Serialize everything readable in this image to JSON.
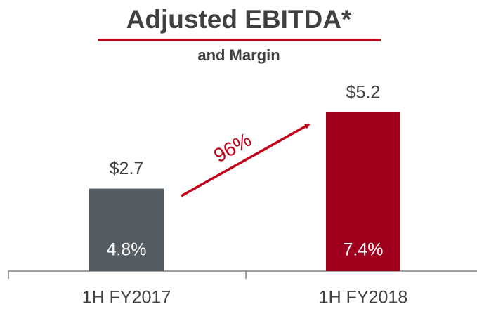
{
  "chart_data": {
    "type": "bar",
    "title": "Adjusted EBITDA*",
    "subtitle": "and Margin",
    "categories": [
      "1H FY2017",
      "1H FY2018"
    ],
    "values": [
      2.7,
      5.2
    ],
    "value_labels": [
      "$2.7",
      "$5.2"
    ],
    "colors": [
      "#545b61",
      "#a0001e"
    ],
    "margins": [
      4.8,
      7.4
    ],
    "margin_labels": [
      "4.8%",
      "7.4%"
    ],
    "annotation": "96%",
    "annotation_color": "#c00018"
  }
}
